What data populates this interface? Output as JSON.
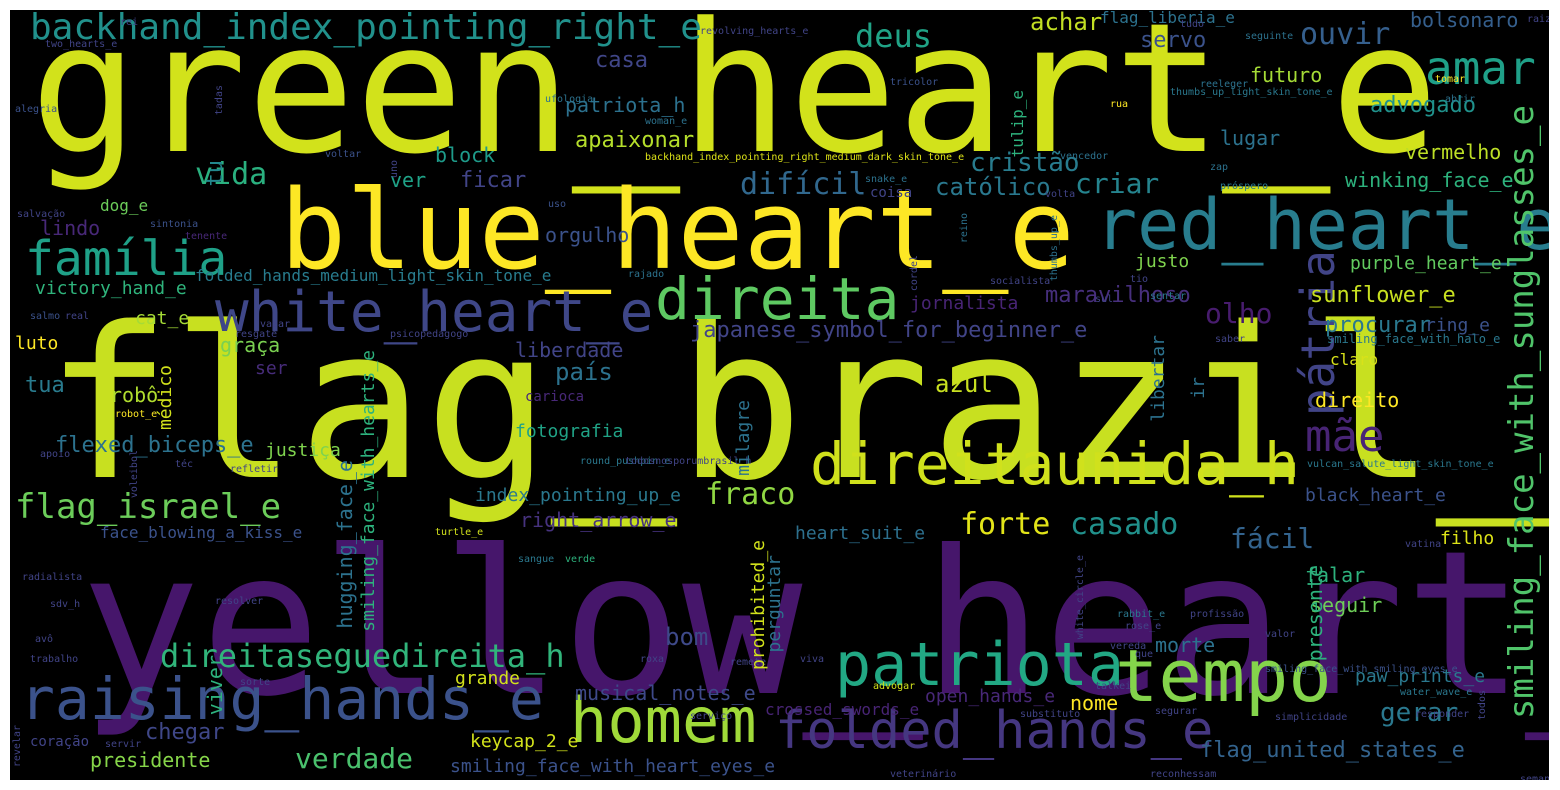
{
  "words": [
    {
      "text": "green_heart_e",
      "color": "#d2e21b"
    },
    {
      "text": "flag_brazil_e",
      "color": "#c8e020"
    },
    {
      "text": "yellow_heart_e",
      "color": "#46166b"
    },
    {
      "text": "blue_heart_e",
      "color": "#fde725"
    },
    {
      "text": "red_heart_e",
      "color": "#287d8e"
    },
    {
      "text": "white_heart_e",
      "color": "#3f4788"
    },
    {
      "text": "direita",
      "color": "#5ec962"
    },
    {
      "text": "família",
      "color": "#1fa188"
    },
    {
      "text": "direitaunida_h",
      "color": "#d0e11c"
    },
    {
      "text": "tempo",
      "color": "#84d44b"
    },
    {
      "text": "patriota",
      "color": "#22a884"
    },
    {
      "text": "homem",
      "color": "#a0da39"
    },
    {
      "text": "raising_hands_e",
      "color": "#3b528b"
    },
    {
      "text": "folded_hands_e",
      "color": "#453781"
    },
    {
      "text": "backhand_index_pointing_right_e",
      "color": "#21918c"
    },
    {
      "text": "amar",
      "color": "#1fa088"
    },
    {
      "text": "pátria",
      "color": "#414487"
    },
    {
      "text": "mãe",
      "color": "#482475"
    },
    {
      "text": "direitaseguedireita_h",
      "color": "#31b57b"
    },
    {
      "text": "smiling_face_with_sunglasses_e",
      "color": "#50c46a"
    },
    {
      "text": "flag_israel_e",
      "color": "#6ccd5a"
    },
    {
      "text": "deus",
      "color": "#20a386"
    },
    {
      "text": "ouvir",
      "color": "#355f8d"
    },
    {
      "text": "vida",
      "color": "#2ab07f"
    },
    {
      "text": "difícil",
      "color": "#31688e"
    },
    {
      "text": "cristão",
      "color": "#287c8e"
    },
    {
      "text": "criar",
      "color": "#25848e"
    },
    {
      "text": "católico",
      "color": "#2a788e"
    },
    {
      "text": "olho",
      "color": "#481c6e"
    },
    {
      "text": "maravilhoso",
      "color": "#472f7d"
    },
    {
      "text": "casado",
      "color": "#21918c"
    },
    {
      "text": "forte",
      "color": "#e2e418"
    },
    {
      "text": "fraco",
      "color": "#90d743"
    },
    {
      "text": "fácil",
      "color": "#33638d"
    },
    {
      "text": "bom",
      "color": "#3e4989"
    },
    {
      "text": "verdade",
      "color": "#4ac16d"
    },
    {
      "text": "gerar",
      "color": "#2a788e"
    },
    {
      "text": "achar",
      "color": "#c2df23"
    },
    {
      "text": "servo",
      "color": "#3b528b"
    },
    {
      "text": "casa",
      "color": "#404688"
    },
    {
      "text": "patriota_h",
      "color": "#2c718e"
    },
    {
      "text": "apaixonar",
      "color": "#b5de2b"
    },
    {
      "text": "block",
      "color": "#1e9b8a"
    },
    {
      "text": "ver",
      "color": "#1fa287"
    },
    {
      "text": "ficar",
      "color": "#414487"
    },
    {
      "text": "tu",
      "color": "#23888e"
    },
    {
      "text": "lindo",
      "color": "#482878"
    },
    {
      "text": "orgulho",
      "color": "#3b528b"
    },
    {
      "text": "bolsonaro",
      "color": "#355f8d"
    },
    {
      "text": "futuro",
      "color": "#a5db36"
    },
    {
      "text": "advogado",
      "color": "#20928c"
    },
    {
      "text": "vermelho",
      "color": "#bddf26"
    },
    {
      "text": "lugar",
      "color": "#2c728e"
    },
    {
      "text": "winking_face_e",
      "color": "#2db27d"
    },
    {
      "text": "purple_heart_e",
      "color": "#62cb5f"
    },
    {
      "text": "sunflower_e",
      "color": "#c8e020"
    },
    {
      "text": "procurar",
      "color": "#2a788e"
    },
    {
      "text": "ring_e",
      "color": "#3b528b"
    },
    {
      "text": "justo",
      "color": "#7fd34e"
    },
    {
      "text": "jornalista",
      "color": "#482475"
    },
    {
      "text": "japanese_symbol_for_beginner_e",
      "color": "#414487"
    },
    {
      "text": "liberdade",
      "color": "#414487"
    },
    {
      "text": "país",
      "color": "#2c728e"
    },
    {
      "text": "azul",
      "color": "#c8e020"
    },
    {
      "text": "robô",
      "color": "#b0dd2f"
    },
    {
      "text": "victory_hand_e",
      "color": "#2fb47c"
    },
    {
      "text": "folded_hands_medium_light_skin_tone_e",
      "color": "#287c8e"
    },
    {
      "text": "cat_e",
      "color": "#a5db36"
    },
    {
      "text": "luto",
      "color": "#fde725"
    },
    {
      "text": "graça",
      "color": "#7ad151"
    },
    {
      "text": "tua",
      "color": "#297b8e"
    },
    {
      "text": "ser",
      "color": "#472c7a"
    },
    {
      "text": "flexed_biceps_e",
      "color": "#2c728e"
    },
    {
      "text": "justiça",
      "color": "#7fd34e"
    },
    {
      "text": "index_pointing_up_e",
      "color": "#2a788e"
    },
    {
      "text": "right_arrow_e",
      "color": "#46327e"
    },
    {
      "text": "fotografia",
      "color": "#20a386"
    },
    {
      "text": "heart_suit_e",
      "color": "#2d708e"
    },
    {
      "text": "black_heart_e",
      "color": "#3b528b"
    },
    {
      "text": "filho",
      "color": "#dde318"
    },
    {
      "text": "claro",
      "color": "#d8e219"
    },
    {
      "text": "direito",
      "color": "#fde725"
    },
    {
      "text": "falar",
      "color": "#2db27d"
    },
    {
      "text": "seguir",
      "color": "#6ece58"
    },
    {
      "text": "morte",
      "color": "#2c728e"
    },
    {
      "text": "musical_notes_e",
      "color": "#3e4989"
    },
    {
      "text": "grande",
      "color": "#d2e21b"
    },
    {
      "text": "chegar",
      "color": "#3f4788"
    },
    {
      "text": "presidente",
      "color": "#86d549"
    },
    {
      "text": "keycap_2_e",
      "color": "#d2e21b"
    },
    {
      "text": "open_hands_e",
      "color": "#482878"
    },
    {
      "text": "nome",
      "color": "#fde725"
    },
    {
      "text": "crossed_swords_e",
      "color": "#482475"
    },
    {
      "text": "flag_united_states_e",
      "color": "#33638d"
    },
    {
      "text": "paw_prints_e",
      "color": "#2a788e"
    },
    {
      "text": "smiling_face_with_heart_eyes_e",
      "color": "#3b528b"
    },
    {
      "text": "face_blowing_a_kiss_e",
      "color": "#3b528b"
    },
    {
      "text": "dog_e",
      "color": "#6ccd5a"
    },
    {
      "text": "flag_liberia_e",
      "color": "#2c728e"
    },
    {
      "text": "thumbs_up_light_skin_tone_e",
      "color": "#2a788e"
    },
    {
      "text": "backhand_index_pointing_right_medium_dark_skin_tone_e",
      "color": "#dde318"
    },
    {
      "text": "smiling_face_with_halo_e",
      "color": "#2a788e"
    },
    {
      "text": "vulcan_salute_light_skin_tone_e",
      "color": "#2a788e"
    },
    {
      "text": "smiling_face_with_smiling_eyes_e",
      "color": "#3b528b"
    },
    {
      "text": "round_pushpin_e",
      "color": "#2a788e"
    },
    {
      "text": "todosnosporumbrasil_h",
      "color": "#414487"
    },
    {
      "text": "turtle_e",
      "color": "#d2e21b"
    },
    {
      "text": "snake_e",
      "color": "#2c728e"
    },
    {
      "text": "robot_e",
      "color": "#fde725"
    },
    {
      "text": "rabbit_e",
      "color": "#2a788e"
    },
    {
      "text": "rose_e",
      "color": "#414487"
    },
    {
      "text": "water_wave_e",
      "color": "#2a788e"
    },
    {
      "text": "sangue",
      "color": "#2a788e"
    },
    {
      "text": "verde",
      "color": "#2db27d"
    },
    {
      "text": "salvação",
      "color": "#414487"
    },
    {
      "text": "sintonia",
      "color": "#3b528b"
    },
    {
      "text": "tenente",
      "color": "#482878"
    },
    {
      "text": "alegria",
      "color": "#3b528b"
    },
    {
      "text": "voltar",
      "color": "#3b528b"
    },
    {
      "text": "ufologia",
      "color": "#2c728e"
    },
    {
      "text": "woman_e",
      "color": "#2c728e"
    },
    {
      "text": "tricolor",
      "color": "#3b528b"
    },
    {
      "text": "reeleger",
      "color": "#2c728e"
    },
    {
      "text": "rua",
      "color": "#fde725"
    },
    {
      "text": "seguinte",
      "color": "#2c728e"
    },
    {
      "text": "abrir",
      "color": "#2c728e"
    },
    {
      "text": "tomar",
      "color": "#fde725"
    },
    {
      "text": "zap",
      "color": "#2c728e"
    },
    {
      "text": "vencedor",
      "color": "#2c728e"
    },
    {
      "text": "próspero",
      "color": "#2a788e"
    },
    {
      "text": "uso",
      "color": "#3b528b"
    },
    {
      "text": "reino",
      "color": "#2c728e"
    },
    {
      "text": "rajado",
      "color": "#2c728e"
    },
    {
      "text": "socialista",
      "color": "#414487"
    },
    {
      "text": "salmo",
      "color": "#3b528b"
    },
    {
      "text": "real",
      "color": "#414487"
    },
    {
      "text": "vazar",
      "color": "#414487"
    },
    {
      "text": "psicopedagogo",
      "color": "#414487"
    },
    {
      "text": "resgate",
      "color": "#414487"
    },
    {
      "text": "sentar",
      "color": "#2a788e"
    },
    {
      "text": "saber",
      "color": "#414487"
    },
    {
      "text": "tio",
      "color": "#414487"
    },
    {
      "text": "sul",
      "color": "#414487"
    },
    {
      "text": "apoio",
      "color": "#414487"
    },
    {
      "text": "voleibol",
      "color": "#414487"
    },
    {
      "text": "téc",
      "color": "#414487"
    },
    {
      "text": "refletir",
      "color": "#414487"
    },
    {
      "text": "radialista",
      "color": "#414487"
    },
    {
      "text": "sdv_h",
      "color": "#414487"
    },
    {
      "text": "resolver",
      "color": "#414487"
    },
    {
      "text": "avô",
      "color": "#414487"
    },
    {
      "text": "trabalho",
      "color": "#414487"
    },
    {
      "text": "sorte",
      "color": "#414487"
    },
    {
      "text": "coração",
      "color": "#414487"
    },
    {
      "text": "servir",
      "color": "#414487"
    },
    {
      "text": "revelar",
      "color": "#414487"
    },
    {
      "text": "roxa",
      "color": "#414487"
    },
    {
      "text": "remete",
      "color": "#414487"
    },
    {
      "text": "viva",
      "color": "#414487"
    },
    {
      "text": "advogar",
      "color": "#d2e21b"
    },
    {
      "text": "serviço",
      "color": "#414487"
    },
    {
      "text": "substituto",
      "color": "#414487"
    },
    {
      "text": "talkei",
      "color": "#414487"
    },
    {
      "text": "segurar",
      "color": "#414487"
    },
    {
      "text": "simplicidade",
      "color": "#414487"
    },
    {
      "text": "reconhessam",
      "color": "#414487"
    },
    {
      "text": "veterinário",
      "color": "#414487"
    },
    {
      "text": "vereda",
      "color": "#414487"
    },
    {
      "text": "que",
      "color": "#414487"
    },
    {
      "text": "valor",
      "color": "#414487"
    },
    {
      "text": "profissão",
      "color": "#414487"
    },
    {
      "text": "white_circle_e",
      "color": "#414487"
    },
    {
      "text": "vatina",
      "color": "#414487"
    },
    {
      "text": "responder",
      "color": "#414487"
    },
    {
      "text": "semana",
      "color": "#414487"
    },
    {
      "text": "todos",
      "color": "#414487"
    },
    {
      "text": "raiz",
      "color": "#414487"
    },
    {
      "text": "rei",
      "color": "#414487"
    },
    {
      "text": "two_hearts_e",
      "color": "#414487"
    },
    {
      "text": "revolving_hearts_e",
      "color": "#414487"
    },
    {
      "text": "tudo",
      "color": "#414487"
    },
    {
      "text": "coisa",
      "color": "#414487"
    },
    {
      "text": "volta",
      "color": "#414487"
    },
    {
      "text": "uno",
      "color": "#414487"
    },
    {
      "text": "tadas",
      "color": "#414487"
    },
    {
      "text": "cordel",
      "color": "#414487"
    },
    {
      "text": "carioca",
      "color": "#482878"
    },
    {
      "text": "milagre",
      "color": "#2c728e"
    },
    {
      "text": "libertar",
      "color": "#2c728e"
    },
    {
      "text": "ir",
      "color": "#2c728e"
    },
    {
      "text": "médico",
      "color": "#d2e21b"
    },
    {
      "text": "hugging_face_e",
      "color": "#2c728e"
    },
    {
      "text": "smiling_face_with_hearts_e",
      "color": "#2db27d"
    },
    {
      "text": "prohibited_e",
      "color": "#d2e21b"
    },
    {
      "text": "perguntar",
      "color": "#2c728e"
    },
    {
      "text": "viver",
      "color": "#2db27d"
    },
    {
      "text": "presente",
      "color": "#2db27d"
    },
    {
      "text": "tulip_e",
      "color": "#2db27d"
    },
    {
      "text": "thumbs_up_e",
      "color": "#2c728e"
    }
  ]
}
